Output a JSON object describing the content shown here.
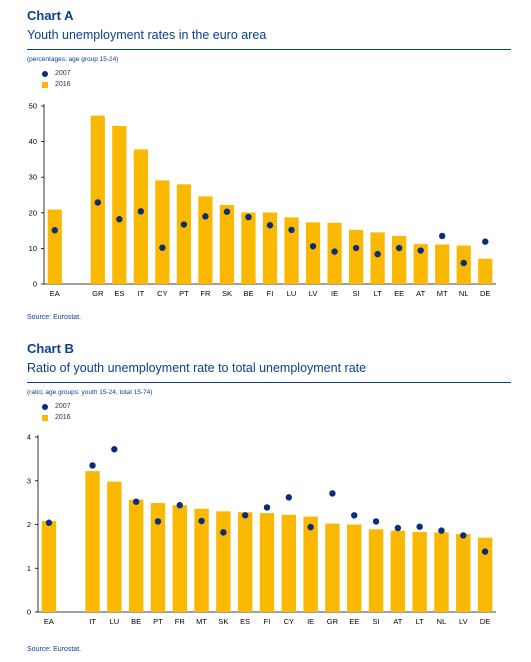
{
  "chart_data": [
    {
      "type": "bar",
      "label": "Chart A",
      "title": "Youth unemployment rates in the euro area",
      "subtitle": "(percentages; age group 15-24)",
      "source": "Source: Eurostat.",
      "categories": [
        "EA",
        "",
        "GR",
        "ES",
        "IT",
        "CY",
        "PT",
        "FR",
        "SK",
        "BE",
        "FI",
        "LU",
        "LV",
        "IE",
        "SI",
        "LT",
        "EE",
        "AT",
        "MT",
        "NL",
        "DE"
      ],
      "series": [
        {
          "name": "2007",
          "mark": "dot",
          "color": "#0b2d7a",
          "values": [
            15.1,
            null,
            22.9,
            18.2,
            20.4,
            10.2,
            16.7,
            19.0,
            20.3,
            18.8,
            16.5,
            15.2,
            10.6,
            9.1,
            10.1,
            8.4,
            10.1,
            9.4,
            13.5,
            5.9,
            11.9
          ]
        },
        {
          "name": "2016",
          "mark": "bar",
          "color": "#fbb800",
          "values": [
            20.9,
            null,
            47.3,
            44.4,
            37.8,
            29.1,
            28.0,
            24.6,
            22.2,
            20.1,
            20.1,
            18.7,
            17.3,
            17.2,
            15.2,
            14.5,
            13.5,
            11.2,
            11.1,
            10.8,
            7.1
          ]
        }
      ],
      "ylim": [
        0,
        50
      ],
      "yticks": [
        "0",
        "10",
        "20",
        "30",
        "40",
        "50"
      ],
      "xlabel": "",
      "ylabel": ""
    },
    {
      "type": "bar",
      "label": "Chart B",
      "title": "Ratio of youth unemployment rate to total unemployment rate",
      "subtitle": "(ratio; age groups: youth 15-24, total 15-74)",
      "source": "Source: Eurostat.",
      "categories": [
        "EA",
        "",
        "IT",
        "LU",
        "BE",
        "PT",
        "FR",
        "MT",
        "SK",
        "ES",
        "FI",
        "CY",
        "IE",
        "GR",
        "EE",
        "SI",
        "AT",
        "LT",
        "NL",
        "LV",
        "DE"
      ],
      "series": [
        {
          "name": "2007",
          "mark": "dot",
          "color": "#0b2d7a",
          "values": [
            2.04,
            null,
            3.35,
            3.72,
            2.52,
            2.07,
            2.44,
            2.08,
            1.82,
            2.21,
            2.39,
            2.62,
            1.94,
            2.71,
            2.21,
            2.07,
            1.92,
            1.95,
            1.86,
            1.75,
            1.38
          ]
        },
        {
          "name": "2016",
          "mark": "bar",
          "color": "#fbb800",
          "values": [
            2.08,
            null,
            3.22,
            2.98,
            2.57,
            2.49,
            2.44,
            2.36,
            2.3,
            2.28,
            2.26,
            2.22,
            2.18,
            2.02,
            2.0,
            1.89,
            1.86,
            1.83,
            1.82,
            1.78,
            1.7
          ]
        }
      ],
      "ylim": [
        0,
        4
      ],
      "yticks": [
        "0",
        "1",
        "2",
        "3",
        "4"
      ],
      "xlabel": "",
      "ylabel": ""
    }
  ]
}
